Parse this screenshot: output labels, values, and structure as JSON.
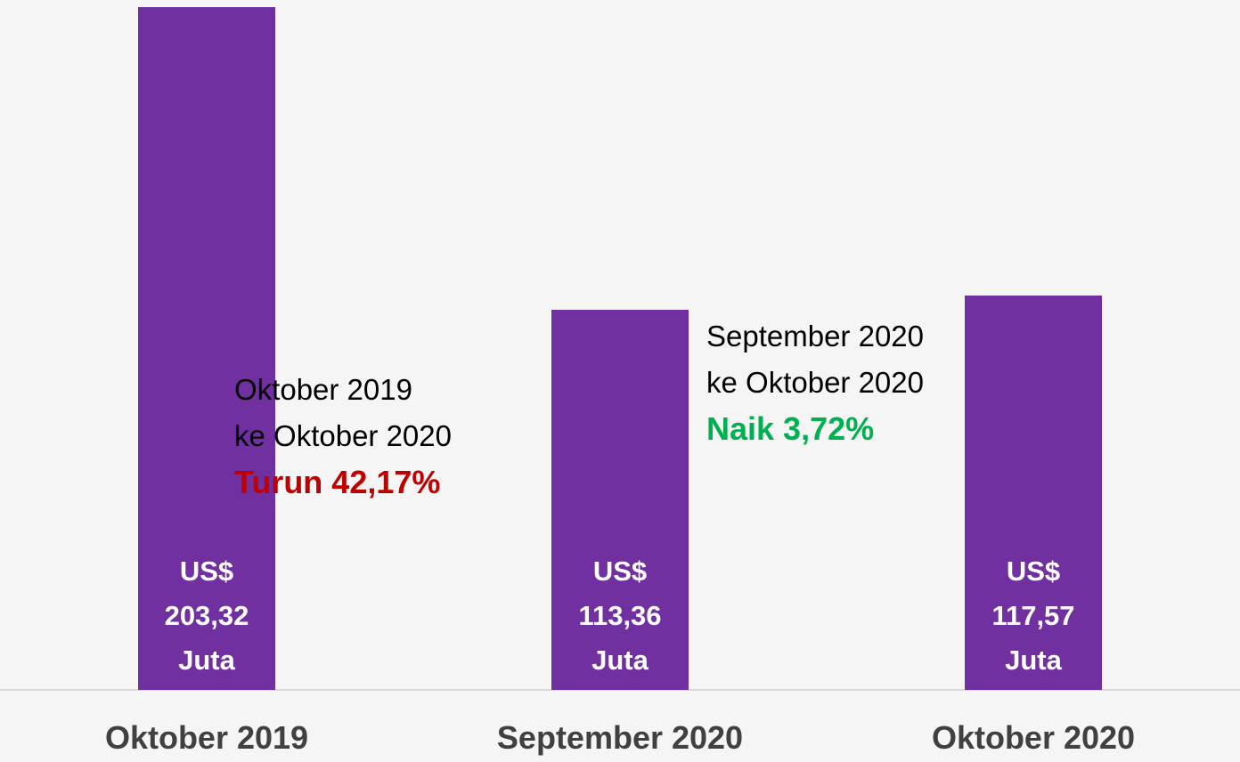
{
  "chart_data": {
    "type": "bar",
    "categories": [
      "Oktober 2019",
      "September 2020",
      "Oktober 2020"
    ],
    "values": [
      203.32,
      113.36,
      117.57
    ],
    "value_labels": [
      "US$ 203,32 Juta",
      "US$ 113,36 Juta",
      "US$ 117,57 Juta"
    ],
    "color": "#7030a0",
    "ylim": [
      0,
      205
    ],
    "annotations": [
      {
        "lines": [
          "Oktober 2019",
          "ke Oktober 2020"
        ],
        "highlight": "Turun 42,17%",
        "color": "#c00000"
      },
      {
        "lines": [
          "September 2020",
          "ke Oktober 2020"
        ],
        "highlight": "Naik 3,72%",
        "color": "#00b050"
      }
    ]
  }
}
